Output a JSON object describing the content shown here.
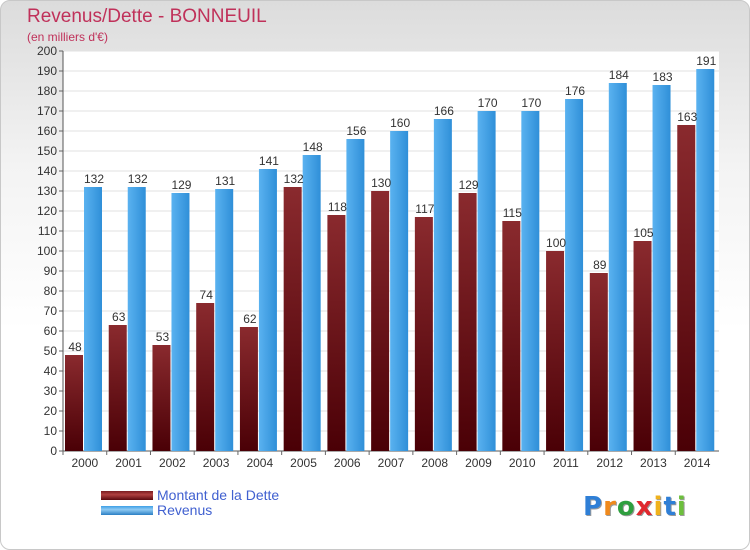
{
  "header": {
    "title": "Revenus/Dette - BONNEUIL",
    "subtitle": "(en milliers d'€)"
  },
  "chart_data": {
    "type": "bar",
    "categories": [
      "2000",
      "2001",
      "2002",
      "2003",
      "2004",
      "2005",
      "2006",
      "2007",
      "2008",
      "2009",
      "2010",
      "2011",
      "2012",
      "2013",
      "2014"
    ],
    "series": [
      {
        "name": "Montant de la Dette",
        "values": [
          48,
          63,
          53,
          74,
          62,
          132,
          118,
          130,
          117,
          129,
          115,
          100,
          89,
          105,
          163
        ],
        "color": "#7a1c20"
      },
      {
        "name": "Revenus",
        "values": [
          132,
          132,
          129,
          131,
          141,
          148,
          156,
          160,
          166,
          170,
          170,
          176,
          184,
          183,
          191
        ],
        "color": "#3d9fe6"
      }
    ],
    "title": "Revenus/Dette - BONNEUIL",
    "ylabel": "(en milliers d'€)",
    "ylim": [
      0,
      200
    ],
    "ytick_step": 10,
    "grid": true,
    "legend_position": "bottom-left",
    "data_labels": true
  },
  "legend": {
    "items": [
      {
        "label": "Montant de la Dette",
        "color": "#7a1c20"
      },
      {
        "label": "Revenus",
        "color": "#3d9fe6"
      }
    ]
  },
  "logo": {
    "letters": [
      "P",
      "r",
      "o",
      "x",
      "i",
      "t",
      "i"
    ],
    "colors": [
      "#2f7fd6",
      "#f08a1c",
      "#2f9f3f",
      "#e0282e",
      "#f0b21c",
      "#2f7fd6",
      "#6cbf3c"
    ]
  }
}
